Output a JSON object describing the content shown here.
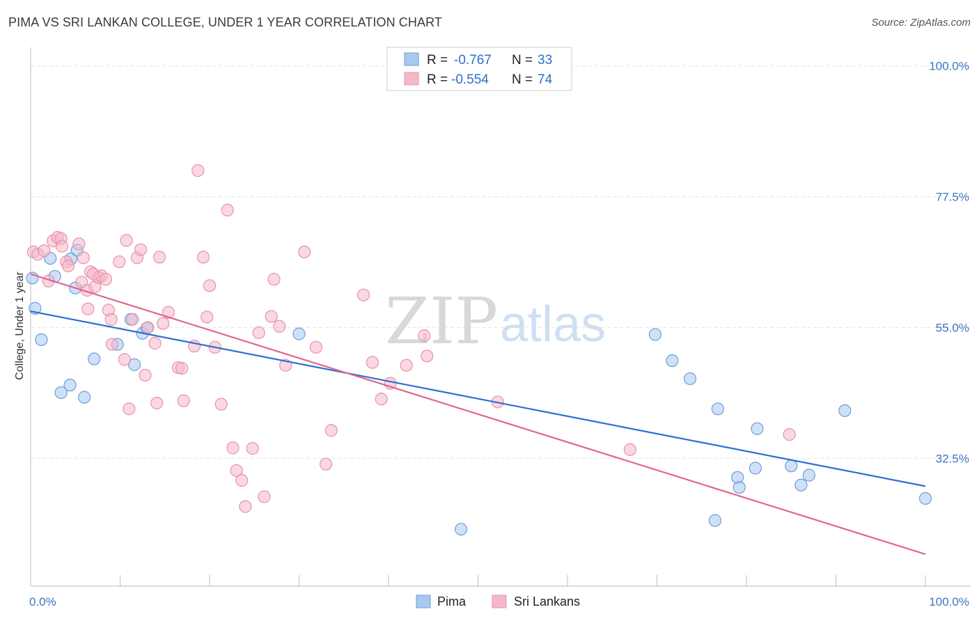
{
  "title": "PIMA VS SRI LANKAN COLLEGE, UNDER 1 YEAR CORRELATION CHART",
  "source": "Source: ZipAtlas.com",
  "watermark": {
    "zip": "ZIP",
    "atlas": "atlas"
  },
  "legend": {
    "rows": [
      {
        "r_label": "R =",
        "r_value": "-0.767",
        "n_label": "N =",
        "n_value": "33",
        "color": "#a8c8f0"
      },
      {
        "r_label": "R =",
        "r_value": "-0.554",
        "n_label": "N =",
        "n_value": "74",
        "color": "#f5b8c8"
      }
    ]
  },
  "bottom_legend": [
    {
      "label": "Pima",
      "color": "#a8c8f0"
    },
    {
      "label": "Sri Lankans",
      "color": "#f5b8c8"
    }
  ],
  "chart_data": {
    "type": "scatter",
    "title": "PIMA VS SRI LANKAN COLLEGE, UNDER 1 YEAR CORRELATION CHART",
    "xlabel": "",
    "ylabel": "College, Under 1 year",
    "xlim": [
      0,
      100
    ],
    "ylim": [
      10.5,
      102
    ],
    "x_tick_labels": [
      "0.0%",
      "100.0%"
    ],
    "y_ticks": [
      32.5,
      55.0,
      77.5,
      100.0
    ],
    "y_tick_labels": [
      "32.5%",
      "55.0%",
      "77.5%",
      "100.0%"
    ],
    "grid": "horizontal dashed",
    "legend_position": "top-center",
    "series": [
      {
        "name": "Pima",
        "color": "#a8c8f0",
        "stroke": "#6a9ede",
        "trend_color": "#2b6fd1",
        "trend": {
          "x0": 0,
          "y0": 57.8,
          "x1": 100,
          "y1": 27.7
        },
        "points": [
          [
            0.2,
            63.5
          ],
          [
            0.5,
            58.3
          ],
          [
            1.2,
            52.9
          ],
          [
            2.7,
            63.8
          ],
          [
            4.5,
            66.8
          ],
          [
            2.2,
            66.9
          ],
          [
            5.2,
            68.3
          ],
          [
            5.0,
            61.8
          ],
          [
            3.4,
            43.8
          ],
          [
            4.4,
            45.1
          ],
          [
            6.0,
            43.0
          ],
          [
            7.1,
            49.6
          ],
          [
            9.7,
            52.1
          ],
          [
            11.2,
            56.4
          ],
          [
            11.6,
            48.6
          ],
          [
            12.5,
            54.0
          ],
          [
            13.0,
            54.9
          ],
          [
            30.0,
            53.9
          ],
          [
            48.1,
            20.3
          ],
          [
            69.8,
            53.8
          ],
          [
            71.7,
            49.3
          ],
          [
            73.7,
            46.2
          ],
          [
            76.8,
            41.0
          ],
          [
            79.0,
            29.2
          ],
          [
            79.2,
            27.5
          ],
          [
            76.5,
            21.8
          ],
          [
            81.2,
            37.6
          ],
          [
            85.0,
            31.2
          ],
          [
            86.1,
            27.9
          ],
          [
            87.0,
            29.6
          ],
          [
            91.0,
            40.7
          ],
          [
            100.0,
            25.6
          ],
          [
            81.0,
            30.8
          ]
        ]
      },
      {
        "name": "Sri Lankans",
        "color": "#f5b8c8",
        "stroke": "#e890aa",
        "trend_color": "#e0668c",
        "trend": {
          "x0": 0,
          "y0": 64.2,
          "x1": 100,
          "y1": 16.0
        },
        "points": [
          [
            0.3,
            68.0
          ],
          [
            0.8,
            67.6
          ],
          [
            1.5,
            68.2
          ],
          [
            2.5,
            69.9
          ],
          [
            3.0,
            70.5
          ],
          [
            3.4,
            70.3
          ],
          [
            3.5,
            69.0
          ],
          [
            4.0,
            66.3
          ],
          [
            4.2,
            65.6
          ],
          [
            5.4,
            69.4
          ],
          [
            5.7,
            62.8
          ],
          [
            5.9,
            67.0
          ],
          [
            6.3,
            61.4
          ],
          [
            6.4,
            58.2
          ],
          [
            6.7,
            64.6
          ],
          [
            7.2,
            62.0
          ],
          [
            7.6,
            63.6
          ],
          [
            7.9,
            63.9
          ],
          [
            8.4,
            63.3
          ],
          [
            8.7,
            58.0
          ],
          [
            9.0,
            56.4
          ],
          [
            9.9,
            66.3
          ],
          [
            10.7,
            70.0
          ],
          [
            11.4,
            56.4
          ],
          [
            11.9,
            67.0
          ],
          [
            12.3,
            68.4
          ],
          [
            12.8,
            46.8
          ],
          [
            13.9,
            52.3
          ],
          [
            14.4,
            67.1
          ],
          [
            14.8,
            55.7
          ],
          [
            15.4,
            57.6
          ],
          [
            16.5,
            48.1
          ],
          [
            16.9,
            48.0
          ],
          [
            17.1,
            42.4
          ],
          [
            18.3,
            51.8
          ],
          [
            18.7,
            82.0
          ],
          [
            19.3,
            67.1
          ],
          [
            19.7,
            56.8
          ],
          [
            20.0,
            62.2
          ],
          [
            20.6,
            51.6
          ],
          [
            21.3,
            41.8
          ],
          [
            22.0,
            75.2
          ],
          [
            22.6,
            34.3
          ],
          [
            23.0,
            30.4
          ],
          [
            23.6,
            28.7
          ],
          [
            24.0,
            24.2
          ],
          [
            24.8,
            34.2
          ],
          [
            25.5,
            54.1
          ],
          [
            26.1,
            25.9
          ],
          [
            26.9,
            56.9
          ],
          [
            27.2,
            63.3
          ],
          [
            27.8,
            55.2
          ],
          [
            28.5,
            48.5
          ],
          [
            30.6,
            68.0
          ],
          [
            31.9,
            51.6
          ],
          [
            33.0,
            31.5
          ],
          [
            33.6,
            37.3
          ],
          [
            37.2,
            60.6
          ],
          [
            38.2,
            49.0
          ],
          [
            39.2,
            42.7
          ],
          [
            40.2,
            45.4
          ],
          [
            42.0,
            48.5
          ],
          [
            44.0,
            53.6
          ],
          [
            44.3,
            50.1
          ],
          [
            52.2,
            42.2
          ],
          [
            67.0,
            34.0
          ],
          [
            84.8,
            36.6
          ],
          [
            11.0,
            41.0
          ],
          [
            14.1,
            42.0
          ],
          [
            10.5,
            49.5
          ],
          [
            9.1,
            52.1
          ],
          [
            13.1,
            55.0
          ],
          [
            2.0,
            63.0
          ],
          [
            7.0,
            64.2
          ]
        ]
      }
    ]
  }
}
